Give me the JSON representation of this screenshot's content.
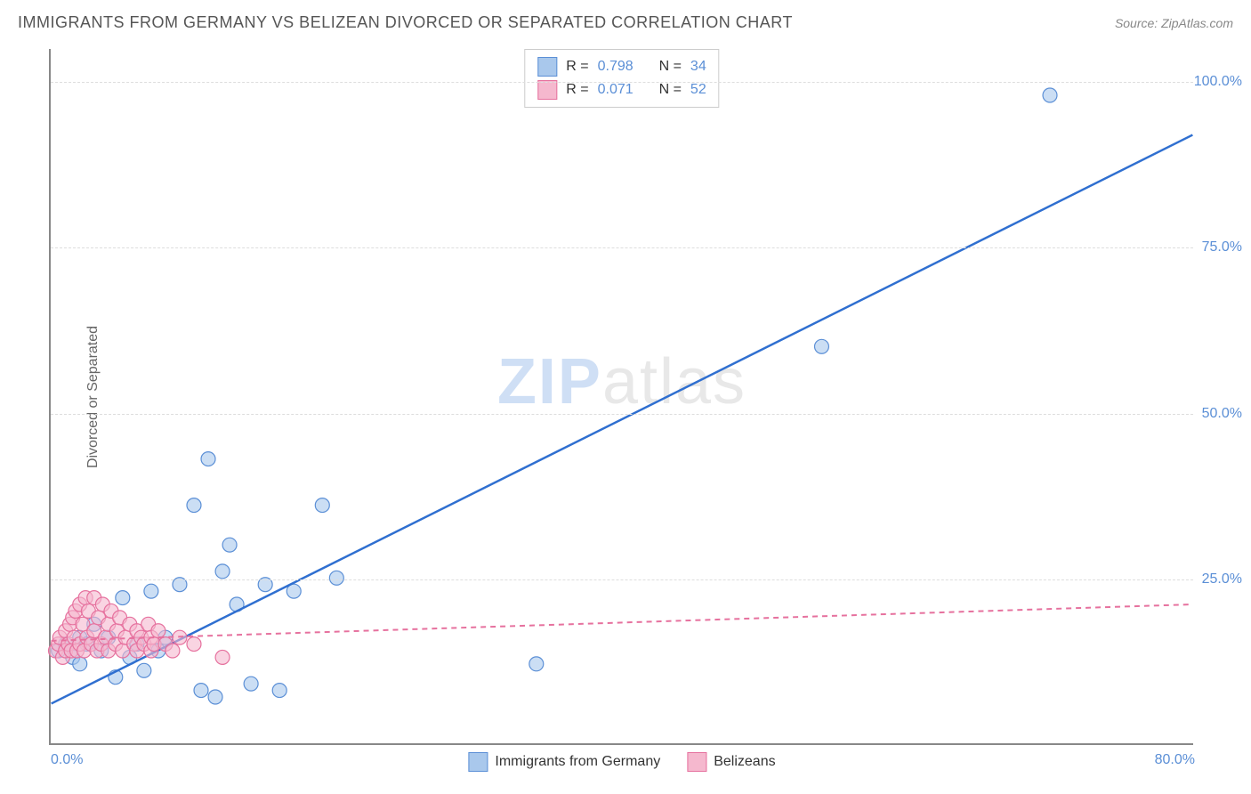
{
  "header": {
    "title": "IMMIGRANTS FROM GERMANY VS BELIZEAN DIVORCED OR SEPARATED CORRELATION CHART",
    "source": "Source: ZipAtlas.com"
  },
  "watermark": {
    "zip": "ZIP",
    "atlas": "atlas"
  },
  "chart": {
    "type": "scatter",
    "background_color": "#ffffff",
    "grid_color": "#dddddd",
    "axis_color": "#888888",
    "ylabel": "Divorced or Separated",
    "ylabel_fontsize": 16,
    "xlim": [
      0,
      80
    ],
    "ylim": [
      0,
      105
    ],
    "x_ticks": [
      {
        "value": 0,
        "label": "0.0%"
      },
      {
        "value": 80,
        "label": "80.0%"
      }
    ],
    "y_ticks": [
      {
        "value": 25,
        "label": "25.0%"
      },
      {
        "value": 50,
        "label": "50.0%"
      },
      {
        "value": 75,
        "label": "75.0%"
      },
      {
        "value": 100,
        "label": "100.0%"
      }
    ],
    "series": [
      {
        "name": "Immigrants from Germany",
        "marker_color": "#a9c8ec",
        "marker_border": "#5b8fd6",
        "marker_radius": 8,
        "marker_opacity": 0.6,
        "line_color": "#2f6fd0",
        "line_width": 2.5,
        "line_dash": "none",
        "r": "0.798",
        "n": "34",
        "regression": {
          "x1": 0,
          "y1": 6,
          "x2": 80,
          "y2": 92
        },
        "points": [
          [
            0.5,
            14
          ],
          [
            1,
            15
          ],
          [
            1.5,
            13
          ],
          [
            2,
            12
          ],
          [
            2,
            16
          ],
          [
            2.5,
            15
          ],
          [
            3,
            18
          ],
          [
            3.5,
            14
          ],
          [
            4,
            16
          ],
          [
            4.5,
            10
          ],
          [
            5,
            22
          ],
          [
            5.5,
            13
          ],
          [
            6,
            15
          ],
          [
            6.5,
            11
          ],
          [
            7,
            23
          ],
          [
            7.5,
            14
          ],
          [
            8,
            16
          ],
          [
            9,
            24
          ],
          [
            10,
            36
          ],
          [
            10.5,
            8
          ],
          [
            11,
            43
          ],
          [
            11.5,
            7
          ],
          [
            12,
            26
          ],
          [
            12.5,
            30
          ],
          [
            13,
            21
          ],
          [
            14,
            9
          ],
          [
            15,
            24
          ],
          [
            16,
            8
          ],
          [
            17,
            23
          ],
          [
            19,
            36
          ],
          [
            20,
            25
          ],
          [
            34,
            12
          ],
          [
            54,
            60
          ],
          [
            70,
            98
          ]
        ]
      },
      {
        "name": "Belizeans",
        "marker_color": "#f5b8ce",
        "marker_border": "#e6719e",
        "marker_radius": 8,
        "marker_opacity": 0.6,
        "line_color": "#e6719e",
        "line_width": 2,
        "line_dash": "6,5",
        "r": "0.071",
        "n": "52",
        "regression": {
          "x1": 0,
          "y1": 15.5,
          "x2": 80,
          "y2": 21
        },
        "points": [
          [
            0.3,
            14
          ],
          [
            0.5,
            15
          ],
          [
            0.6,
            16
          ],
          [
            0.8,
            13
          ],
          [
            1,
            14
          ],
          [
            1,
            17
          ],
          [
            1.2,
            15
          ],
          [
            1.3,
            18
          ],
          [
            1.4,
            14
          ],
          [
            1.5,
            19
          ],
          [
            1.6,
            16
          ],
          [
            1.7,
            20
          ],
          [
            1.8,
            14
          ],
          [
            2,
            21
          ],
          [
            2,
            15
          ],
          [
            2.2,
            18
          ],
          [
            2.3,
            14
          ],
          [
            2.4,
            22
          ],
          [
            2.5,
            16
          ],
          [
            2.6,
            20
          ],
          [
            2.8,
            15
          ],
          [
            3,
            22
          ],
          [
            3,
            17
          ],
          [
            3.2,
            14
          ],
          [
            3.3,
            19
          ],
          [
            3.5,
            15
          ],
          [
            3.6,
            21
          ],
          [
            3.8,
            16
          ],
          [
            4,
            18
          ],
          [
            4,
            14
          ],
          [
            4.2,
            20
          ],
          [
            4.5,
            15
          ],
          [
            4.6,
            17
          ],
          [
            4.8,
            19
          ],
          [
            5,
            14
          ],
          [
            5.2,
            16
          ],
          [
            5.5,
            18
          ],
          [
            5.8,
            15
          ],
          [
            6,
            14
          ],
          [
            6,
            17
          ],
          [
            6.3,
            16
          ],
          [
            6.5,
            15
          ],
          [
            6.8,
            18
          ],
          [
            7,
            14
          ],
          [
            7,
            16
          ],
          [
            7.2,
            15
          ],
          [
            7.5,
            17
          ],
          [
            8,
            15
          ],
          [
            8.5,
            14
          ],
          [
            9,
            16
          ],
          [
            10,
            15
          ],
          [
            12,
            13
          ]
        ]
      }
    ],
    "legend_box": {
      "rows": [
        {
          "r_label": "R =",
          "n_label": "N ="
        }
      ]
    },
    "bottom_legend": {
      "items": [
        {
          "swatch_fill": "#a9c8ec",
          "swatch_border": "#5b8fd6"
        },
        {
          "swatch_fill": "#f5b8ce",
          "swatch_border": "#e6719e"
        }
      ]
    }
  }
}
